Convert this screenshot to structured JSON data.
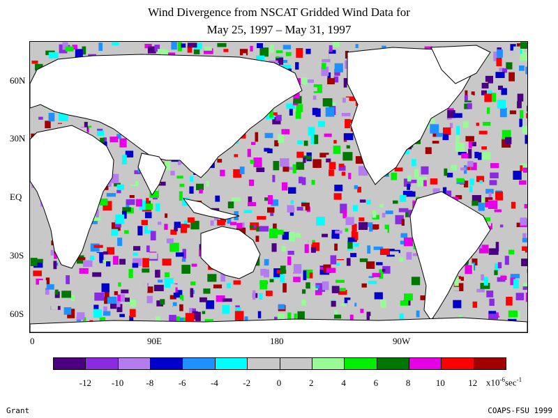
{
  "title_line1": "Wind Divergence from NSCAT Gridded Wind Data for",
  "title_line2": "May 25, 1997 – May 31, 1997",
  "lat_labels": [
    "60N",
    "30N",
    "EQ",
    "30S",
    "60S"
  ],
  "lon_labels": [
    "0",
    "90E",
    "180",
    "90W"
  ],
  "colorbar": {
    "colors": [
      "#4b0082",
      "#8a2be2",
      "#b57cf0",
      "#0000cd",
      "#1e90ff",
      "#00ffff",
      "#c8c8c8",
      "#c8c8c8",
      "#98fb98",
      "#00ee00",
      "#007800",
      "#e600e6",
      "#ff0000",
      "#a00000"
    ],
    "ticks": [
      "-12",
      "-10",
      "-8",
      "-6",
      "-4",
      "-2",
      "0",
      "2",
      "4",
      "6",
      "8",
      "10",
      "12"
    ],
    "units_prefix": "x10",
    "units_exp": "-6",
    "units_suffix": "sec",
    "units_exp2": "-1"
  },
  "credits": {
    "left": "Grant",
    "right": "COAPS-FSU 1999"
  }
}
